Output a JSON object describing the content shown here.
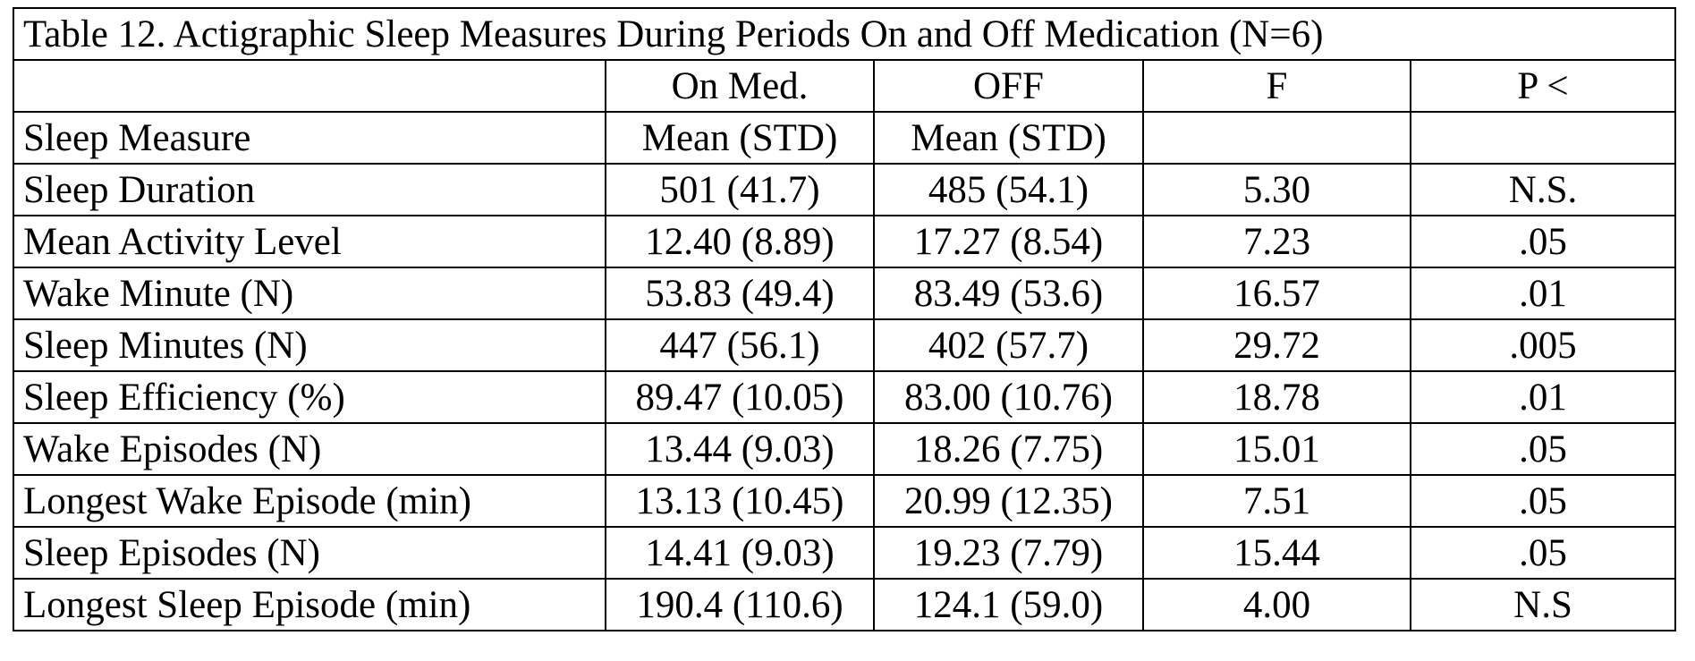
{
  "table": {
    "caption": "Table 12.  Actigraphic Sleep Measures During Periods On and Off Medication (N=6)",
    "header_row1": [
      "",
      "On Med.",
      "OFF",
      "F",
      "P <"
    ],
    "header_row2": [
      "Sleep Measure",
      "Mean (STD)",
      "Mean (STD)",
      "",
      ""
    ],
    "rows": [
      {
        "measure": "Sleep Duration",
        "on_med": "501 (41.7)",
        "off": "485 (54.1)",
        "f": "5.30",
        "p": "N.S."
      },
      {
        "measure": "Mean Activity Level",
        "on_med": "12.40 (8.89)",
        "off": "17.27 (8.54)",
        "f": "7.23",
        "p": ".05"
      },
      {
        "measure": "Wake Minute (N)",
        "on_med": "53.83 (49.4)",
        "off": "83.49 (53.6)",
        "f": "16.57",
        "p": ".01"
      },
      {
        "measure": "Sleep Minutes (N)",
        "on_med": "447 (56.1)",
        "off": "402 (57.7)",
        "f": "29.72",
        "p": ".005"
      },
      {
        "measure": "Sleep Efficiency (%)",
        "on_med": "89.47 (10.05)",
        "off": "83.00 (10.76)",
        "f": "18.78",
        "p": ".01"
      },
      {
        "measure": "Wake Episodes (N)",
        "on_med": "13.44 (9.03)",
        "off": "18.26 (7.75)",
        "f": "15.01",
        "p": ".05"
      },
      {
        "measure": "Longest Wake Episode (min)",
        "on_med": "13.13 (10.45)",
        "off": "20.99 (12.35)",
        "f": "7.51",
        "p": ".05"
      },
      {
        "measure": "Sleep Episodes (N)",
        "on_med": "14.41 (9.03)",
        "off": "19.23 (7.79)",
        "f": "15.44",
        "p": ".05"
      },
      {
        "measure": "Longest Sleep Episode (min)",
        "on_med": "190.4 (110.6)",
        "off": "124.1 (59.0)",
        "f": "4.00",
        "p": "N.S"
      }
    ]
  }
}
